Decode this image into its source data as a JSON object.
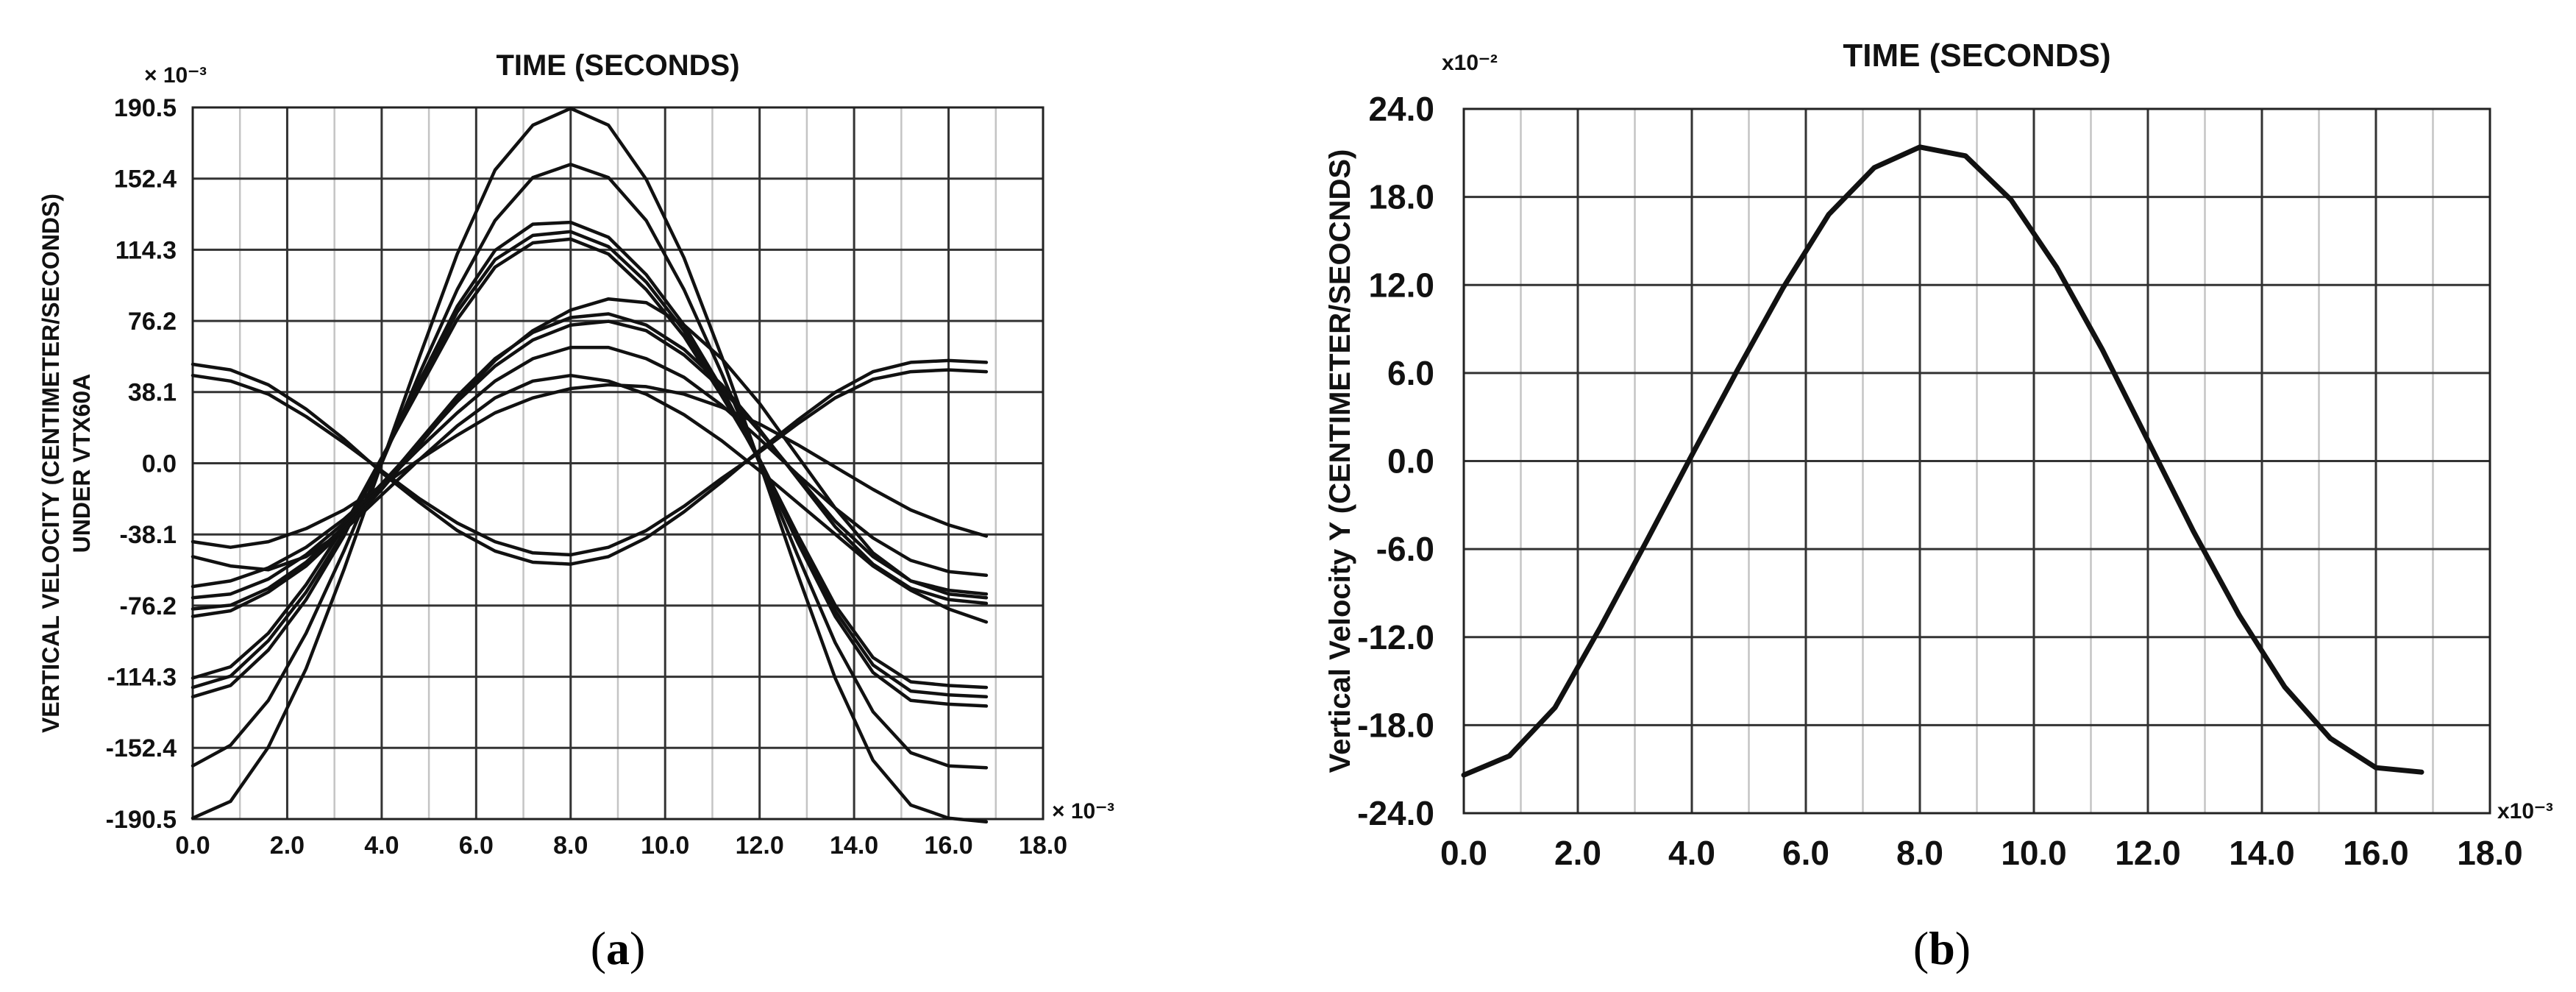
{
  "chart_data": [
    {
      "type": "line",
      "panel_label": "a",
      "title": "TIME (SECONDS)",
      "ylabel_lines": [
        "VERTICAL VELOCITY (CENTIMETER/SECONDS)",
        "UNDER VTX60A"
      ],
      "x_multiplier": "× 10⁻³",
      "y_multiplier": "× 10⁻³",
      "xlim": [
        0,
        18
      ],
      "ylim": [
        -190.5,
        190.5
      ],
      "x_ticks": [
        "0.0",
        "2.0",
        "4.0",
        "6.0",
        "8.0",
        "10.0",
        "12.0",
        "14.0",
        "16.0",
        "18.0"
      ],
      "y_ticks": [
        "190.5",
        "152.4",
        "114.3",
        "76.2",
        "38.1",
        "0.0",
        "-38.1",
        "-76.2",
        "-114.3",
        "-152.4",
        "-190.5"
      ],
      "x": [
        0,
        0.8,
        1.6,
        2.4,
        3.2,
        4.0,
        4.8,
        5.6,
        6.4,
        7.2,
        8.0,
        8.8,
        9.6,
        10.4,
        11.2,
        12.0,
        12.8,
        13.6,
        14.4,
        15.2,
        16.0,
        16.8
      ],
      "series": [
        {
          "name": "s1",
          "values": [
            -190,
            -181,
            -152,
            -110,
            -57,
            0,
            57,
            112,
            157,
            181,
            190,
            181,
            152,
            110,
            57,
            0,
            -59,
            -115,
            -159,
            -183,
            -190,
            -192
          ]
        },
        {
          "name": "s2",
          "values": [
            -162,
            -151,
            -127,
            -91,
            -47,
            0,
            48,
            93,
            130,
            153,
            160,
            153,
            130,
            93,
            48,
            0,
            -49,
            -96,
            -133,
            -155,
            -162,
            -163
          ]
        },
        {
          "name": "s3",
          "values": [
            -125,
            -119,
            -100,
            -73,
            -39,
            2,
            44,
            84,
            114,
            128,
            129,
            121,
            101,
            74,
            40,
            1,
            -42,
            -82,
            -112,
            -127,
            -129,
            -130
          ]
        },
        {
          "name": "s4",
          "values": [
            -120,
            -114,
            -95,
            -69,
            -37,
            2,
            42,
            81,
            109,
            122,
            124,
            116,
            97,
            71,
            38,
            1,
            -40,
            -79,
            -108,
            -122,
            -124,
            -125
          ]
        },
        {
          "name": "s5",
          "values": [
            -115,
            -109,
            -91,
            -65,
            -34,
            3,
            40,
            77,
            105,
            118,
            120,
            112,
            93,
            68,
            36,
            2,
            -38,
            -76,
            -104,
            -117,
            -119,
            -120
          ]
        },
        {
          "name": "s6",
          "values": [
            -82,
            -79,
            -69,
            -55,
            -36,
            -14,
            10,
            34,
            55,
            71,
            82,
            88,
            86,
            74,
            56,
            32,
            4,
            -24,
            -48,
            -63,
            -70,
            -72
          ]
        },
        {
          "name": "s7",
          "values": [
            -78,
            -76,
            -67,
            -53,
            -34,
            -12,
            12,
            36,
            56,
            70,
            78,
            80,
            74,
            61,
            42,
            18,
            -8,
            -34,
            -54,
            -67,
            -73,
            -75
          ]
        },
        {
          "name": "s8",
          "values": [
            -72,
            -70,
            -62,
            -49,
            -32,
            -11,
            11,
            33,
            52,
            66,
            74,
            76,
            71,
            58,
            40,
            17,
            -7,
            -31,
            -50,
            -63,
            -68,
            -70
          ]
        },
        {
          "name": "s9",
          "values": [
            -66,
            -63,
            -56,
            -45,
            -30,
            -12,
            8,
            27,
            44,
            56,
            62,
            62,
            56,
            46,
            31,
            13,
            -6,
            -24,
            -40,
            -52,
            -58,
            -60
          ]
        },
        {
          "name": "s10",
          "values": [
            -42,
            -45,
            -42,
            -35,
            -25,
            -12,
            2,
            15,
            27,
            35,
            40,
            42,
            41,
            37,
            30,
            21,
            10,
            -2,
            -14,
            -25,
            -33,
            -39
          ]
        },
        {
          "name": "s11",
          "values": [
            53,
            50,
            42,
            29,
            13,
            -5,
            -21,
            -36,
            -47,
            -53,
            -54,
            -50,
            -40,
            -26,
            -10,
            7,
            23,
            38,
            49,
            54,
            55,
            54
          ]
        },
        {
          "name": "s12",
          "values": [
            47,
            44,
            37,
            25,
            11,
            -4,
            -19,
            -32,
            -42,
            -48,
            -49,
            -45,
            -36,
            -23,
            -8,
            6,
            21,
            35,
            45,
            49,
            50,
            49
          ]
        },
        {
          "name": "s13",
          "values": [
            -50,
            -55,
            -57,
            -50,
            -36,
            -17,
            2,
            20,
            35,
            44,
            47,
            44,
            37,
            26,
            12,
            -4,
            -21,
            -38,
            -55,
            -68,
            -78,
            -85
          ]
        }
      ]
    },
    {
      "type": "line",
      "panel_label": "b",
      "title": "TIME (SECONDS)",
      "ylabel_lines": [
        "Vertical Velocity Y (CENTIMETER/SEOCNDS)"
      ],
      "x_multiplier": "x10⁻³",
      "y_multiplier": "x10⁻²",
      "xlim": [
        0,
        18
      ],
      "ylim": [
        -24,
        24
      ],
      "x_ticks": [
        "0.0",
        "2.0",
        "4.0",
        "6.0",
        "8.0",
        "10.0",
        "12.0",
        "14.0",
        "16.0",
        "18.0"
      ],
      "y_ticks": [
        "24.0",
        "18.0",
        "12.0",
        "6.0",
        "0.0",
        "-6.0",
        "-12.0",
        "-18.0",
        "-24.0"
      ],
      "x": [
        0,
        0.8,
        1.6,
        2.4,
        3.2,
        4.0,
        4.8,
        5.6,
        6.4,
        7.2,
        8.0,
        8.8,
        9.6,
        10.4,
        11.2,
        12.0,
        12.8,
        13.6,
        14.4,
        15.2,
        16.0,
        16.8
      ],
      "series": [
        {
          "name": "velocity",
          "values": [
            -21.4,
            -20.1,
            -16.8,
            -11.3,
            -5.5,
            0.4,
            6.2,
            11.8,
            16.8,
            20.0,
            21.4,
            20.8,
            17.8,
            13.2,
            7.6,
            1.4,
            -4.8,
            -10.5,
            -15.4,
            -18.9,
            -20.9,
            -21.2
          ]
        }
      ]
    }
  ]
}
